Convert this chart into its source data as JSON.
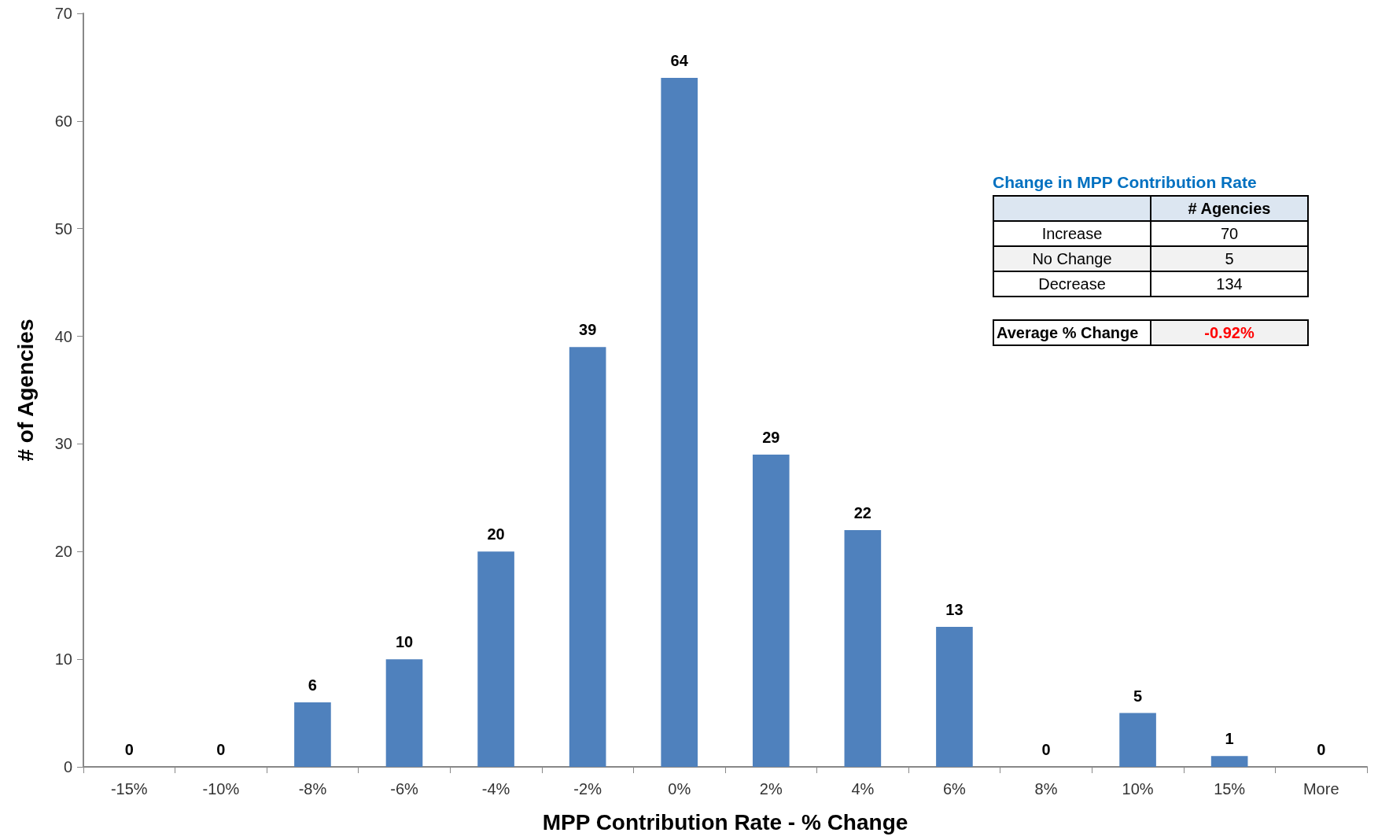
{
  "chart_data": {
    "type": "bar",
    "xlabel": "MPP Contribution Rate - % Change",
    "ylabel": "# of Agencies",
    "categories": [
      "-15%",
      "-10%",
      "-8%",
      "-6%",
      "-4%",
      "-2%",
      "0%",
      "2%",
      "4%",
      "6%",
      "8%",
      "10%",
      "15%",
      "More"
    ],
    "values": [
      0,
      0,
      6,
      10,
      20,
      39,
      64,
      29,
      22,
      13,
      0,
      5,
      1,
      0
    ],
    "color": "#4f81bd",
    "ylim": [
      0,
      70
    ],
    "yticks": [
      0,
      10,
      20,
      30,
      40,
      50,
      60,
      70
    ],
    "grid": false,
    "data_labels": true,
    "annotations": [
      "Change in MPP Contribution Rate",
      "# Agencies",
      "Increase",
      "70",
      "No Change",
      "5",
      "Decrease",
      "134",
      "Average % Change",
      "-0.92%"
    ]
  }
}
